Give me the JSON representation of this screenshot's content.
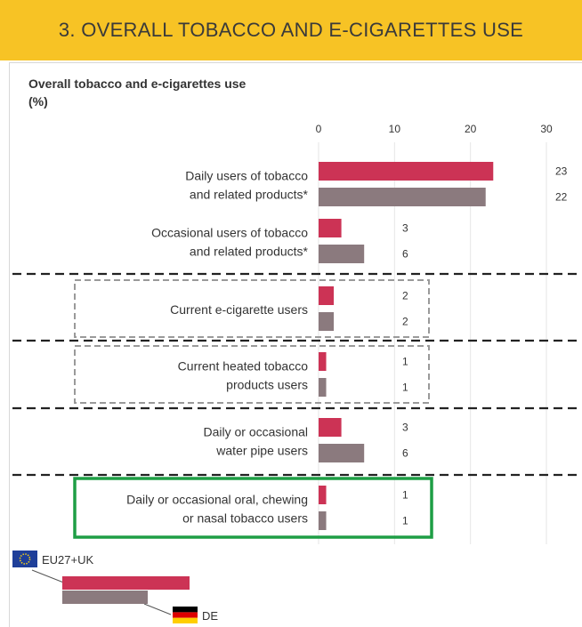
{
  "banner": {
    "title": "3. OVERALL TOBACCO AND E-CIGARETTES USE"
  },
  "chart_data": {
    "type": "bar",
    "orientation": "horizontal",
    "title": "Overall tobacco and e-cigarettes use",
    "unit": "(%)",
    "xlim": [
      0,
      30
    ],
    "xticks": [
      0,
      10,
      20,
      30
    ],
    "grid": true,
    "categories": [
      [
        "Daily users of tobacco",
        "and related products*"
      ],
      [
        "Occasional users of tobacco",
        "and related products*"
      ],
      [
        "Current e-cigarette users"
      ],
      [
        "Current heated tobacco",
        "products users"
      ],
      [
        "Daily or occasional",
        "water pipe users"
      ],
      [
        "Daily or occasional oral, chewing",
        "or nasal tobacco users"
      ]
    ],
    "series": [
      {
        "name": "EU27+UK",
        "color": "#cc3355",
        "values": [
          23,
          3,
          2,
          1,
          3,
          1
        ]
      },
      {
        "name": "DE",
        "color": "#8b7a7e",
        "values": [
          22,
          6,
          2,
          1,
          6,
          1
        ]
      }
    ],
    "legend": {
      "placement": "bottom-left",
      "items": [
        "EU27+UK",
        "DE"
      ]
    },
    "highlight": {
      "category_index": 5,
      "color": "#1e9e45"
    }
  }
}
